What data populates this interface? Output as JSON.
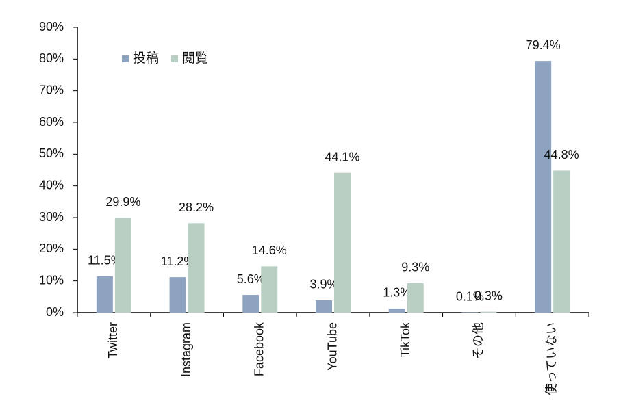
{
  "chart_data": {
    "type": "bar",
    "categories": [
      "Twitter",
      "Instagram",
      "Facebook",
      "YouTube",
      "TikTok",
      "その他",
      "使っていない"
    ],
    "series": [
      {
        "name": "投稿",
        "color": "#8ea3c0",
        "values": [
          11.5,
          11.2,
          5.6,
          3.9,
          1.3,
          0.1,
          79.4
        ],
        "value_labels": [
          "11.5%",
          "11.2%",
          "5.6%",
          "3.9%",
          "1.3%",
          "0.1%",
          "79.4%"
        ]
      },
      {
        "name": "閲覧",
        "color": "#b9cfc4",
        "values": [
          29.9,
          28.2,
          14.6,
          44.1,
          9.3,
          0.3,
          44.8
        ],
        "value_labels": [
          "29.9%",
          "28.2%",
          "14.6%",
          "44.1%",
          "9.3%",
          "0.3%",
          "44.8%"
        ]
      }
    ],
    "ylim": [
      0,
      90
    ],
    "yticks": [
      {
        "value": 0,
        "label": "0%"
      },
      {
        "value": 10,
        "label": "10%"
      },
      {
        "value": 20,
        "label": "20%"
      },
      {
        "value": 30,
        "label": "30%"
      },
      {
        "value": 40,
        "label": "40%"
      },
      {
        "value": 50,
        "label": "50%"
      },
      {
        "value": 60,
        "label": "60%"
      },
      {
        "value": 70,
        "label": "70%"
      },
      {
        "value": 80,
        "label": "80%"
      },
      {
        "value": 90,
        "label": "90%"
      }
    ],
    "grid": false,
    "legend": "top-left"
  }
}
